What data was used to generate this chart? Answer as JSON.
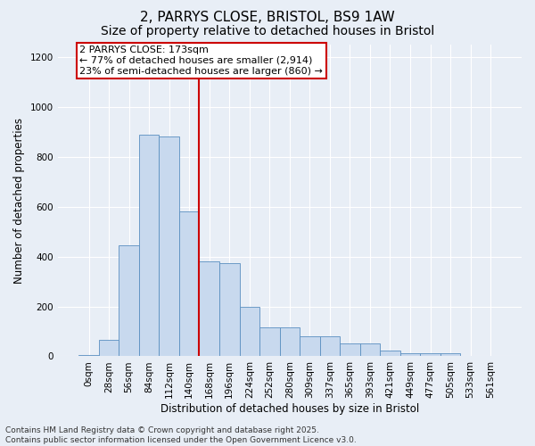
{
  "title_line1": "2, PARRYS CLOSE, BRISTOL, BS9 1AW",
  "title_line2": "Size of property relative to detached houses in Bristol",
  "xlabel": "Distribution of detached houses by size in Bristol",
  "ylabel": "Number of detached properties",
  "bar_labels": [
    "0sqm",
    "28sqm",
    "56sqm",
    "84sqm",
    "112sqm",
    "140sqm",
    "168sqm",
    "196sqm",
    "224sqm",
    "252sqm",
    "280sqm",
    "309sqm",
    "337sqm",
    "365sqm",
    "393sqm",
    "421sqm",
    "449sqm",
    "477sqm",
    "505sqm",
    "533sqm",
    "561sqm"
  ],
  "bar_heights": [
    5,
    65,
    445,
    890,
    880,
    580,
    380,
    375,
    200,
    115,
    115,
    80,
    80,
    50,
    50,
    22,
    14,
    14,
    12,
    0,
    0
  ],
  "bar_color": "#c8d9ee",
  "bar_edge_color": "#5a8fc0",
  "background_color": "#e8eef6",
  "grid_color": "#ffffff",
  "vline_x": 6.0,
  "vline_color": "#cc0000",
  "annotation_text": "2 PARRYS CLOSE: 173sqm\n← 77% of detached houses are smaller (2,914)\n23% of semi-detached houses are larger (860) →",
  "annotation_box_color": "#ffffff",
  "annotation_box_edge": "#cc0000",
  "ylim": [
    0,
    1250
  ],
  "yticks": [
    0,
    200,
    400,
    600,
    800,
    1000,
    1200
  ],
  "footer_line1": "Contains HM Land Registry data © Crown copyright and database right 2025.",
  "footer_line2": "Contains public sector information licensed under the Open Government Licence v3.0.",
  "title_fontsize": 11,
  "subtitle_fontsize": 10,
  "axis_label_fontsize": 8.5,
  "tick_fontsize": 7.5,
  "annotation_fontsize": 8,
  "footer_fontsize": 6.5
}
